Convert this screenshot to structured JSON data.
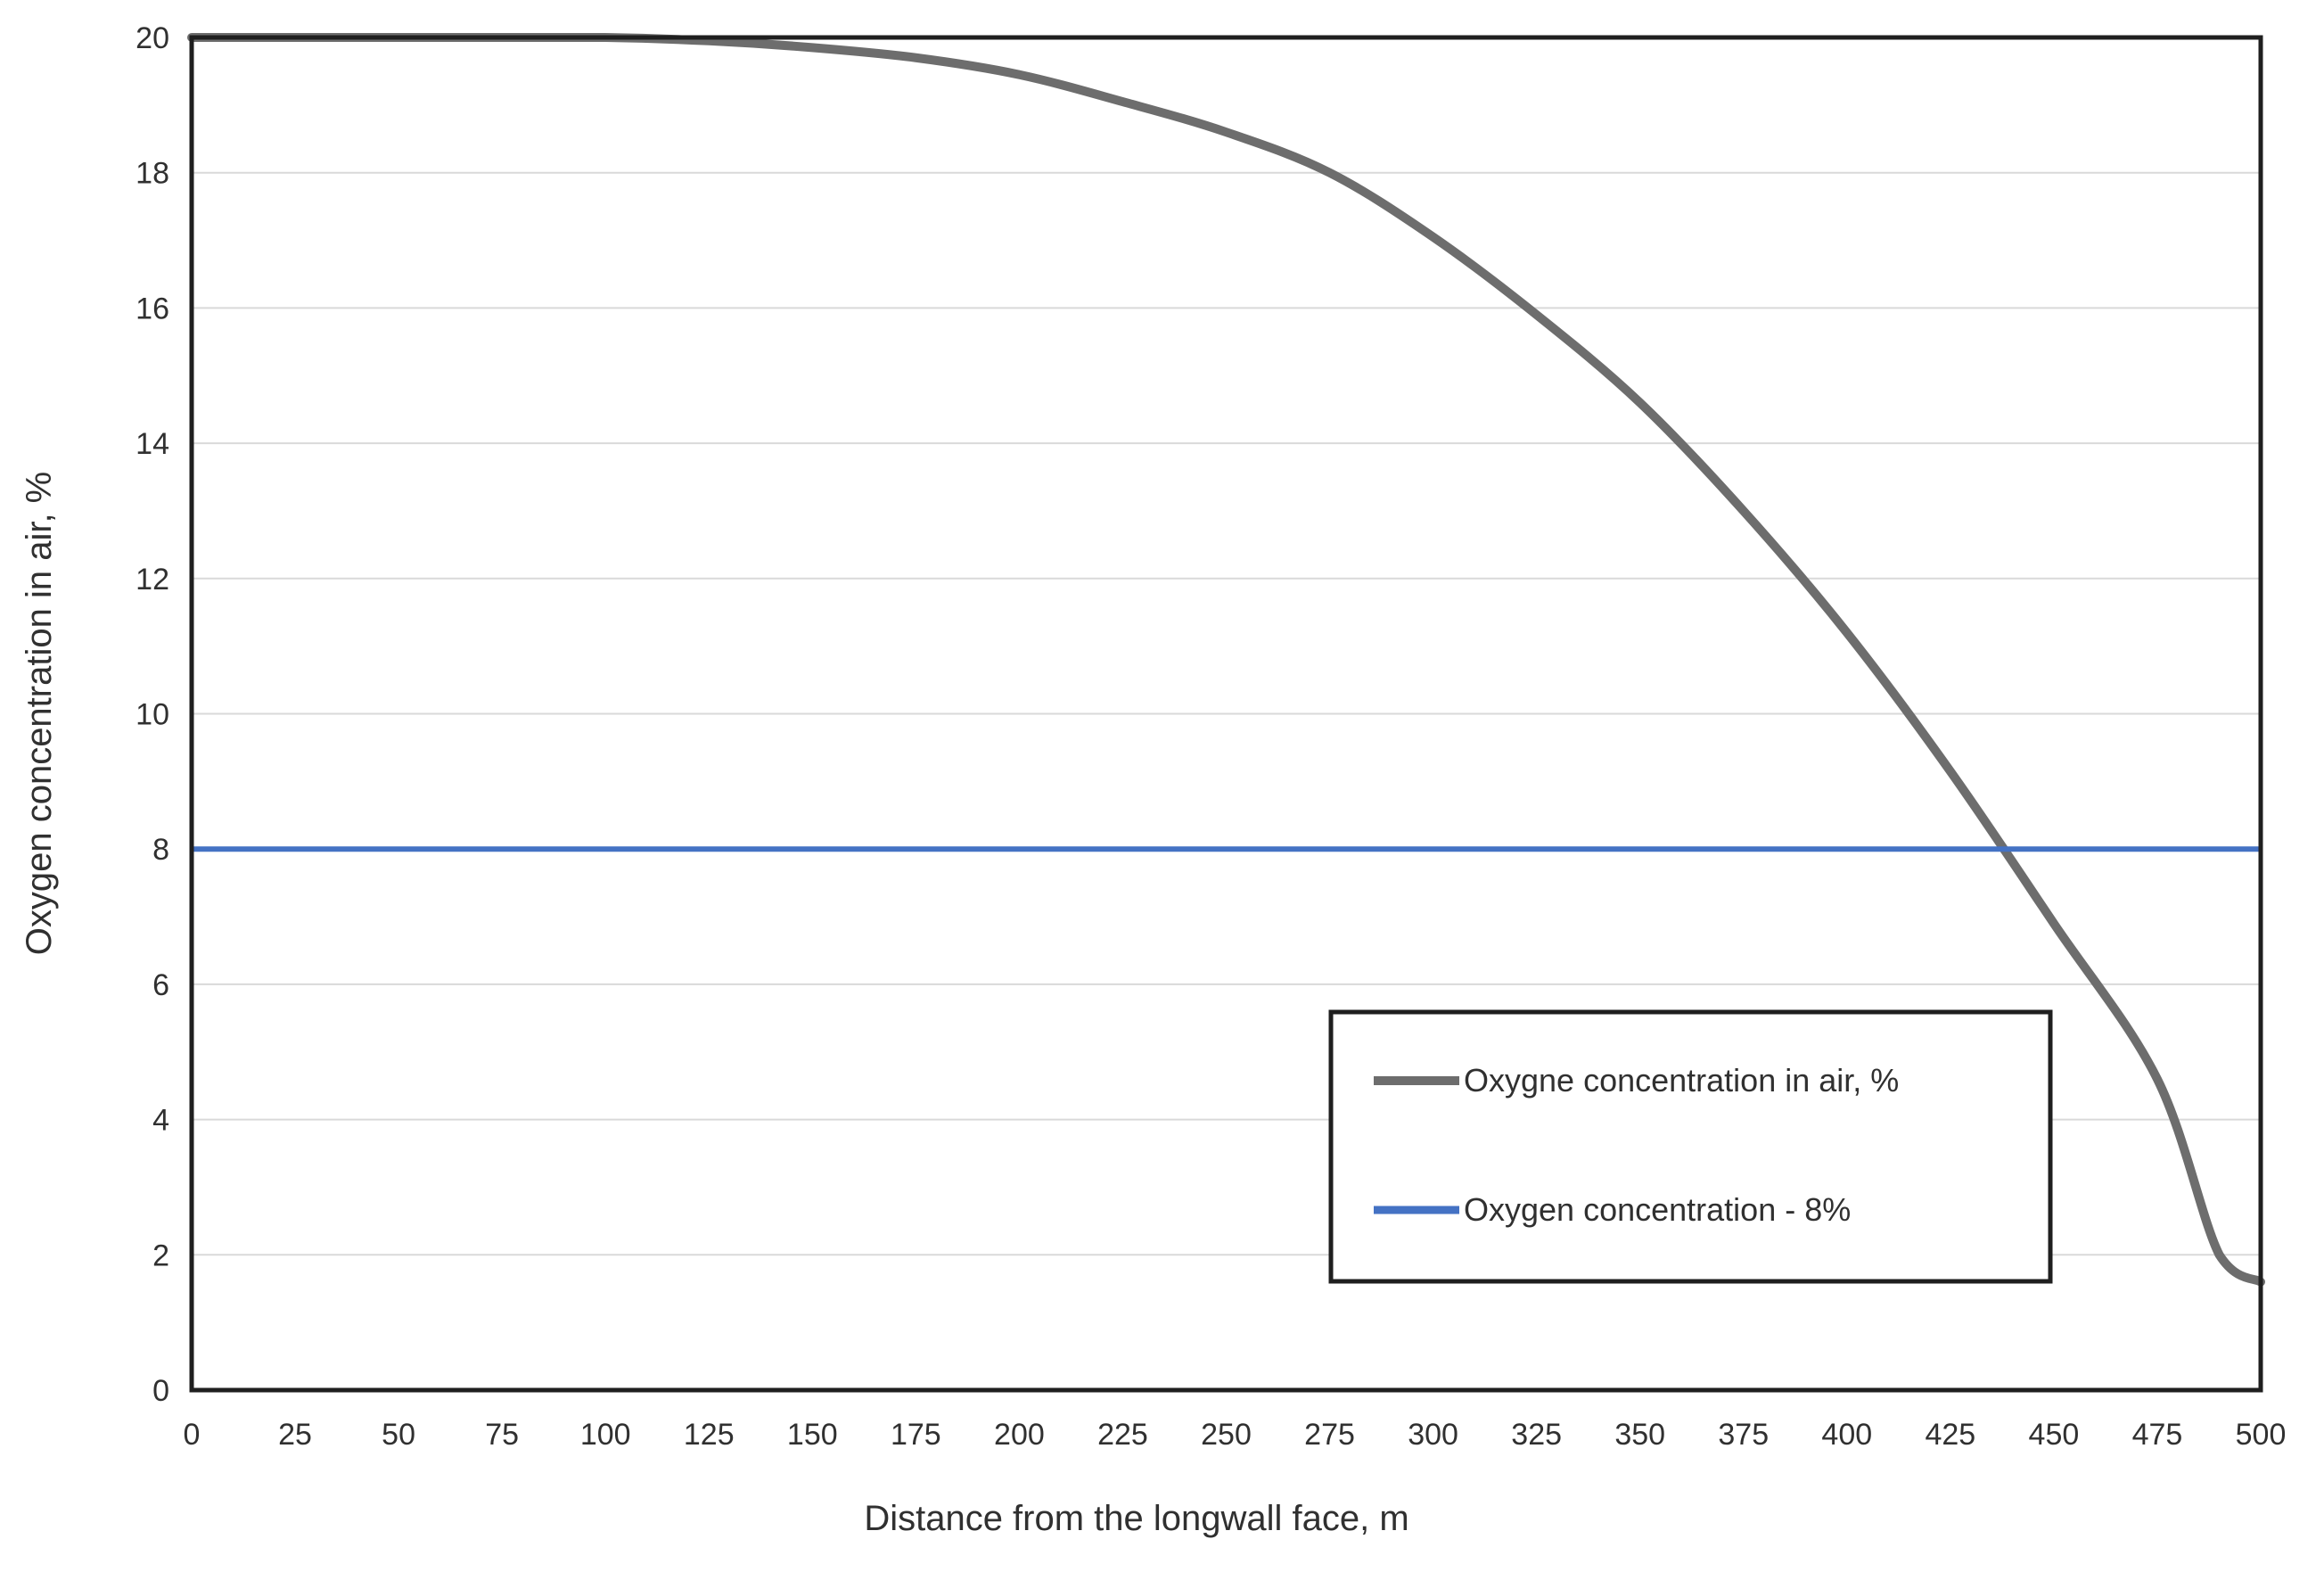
{
  "chart_data": {
    "type": "line",
    "title": "",
    "xlabel": "Distance from the longwall face, m",
    "ylabel": "Oxygen concentration in air, %",
    "xlim": [
      0,
      500
    ],
    "ylim": [
      0,
      20
    ],
    "xticks": [
      0,
      25,
      50,
      75,
      100,
      125,
      150,
      175,
      200,
      225,
      250,
      275,
      300,
      325,
      350,
      375,
      400,
      425,
      450,
      475,
      500
    ],
    "yticks": [
      0,
      2,
      4,
      6,
      8,
      10,
      12,
      14,
      16,
      18,
      20
    ],
    "grid": "horizontal-only",
    "legend_position": "inside-bottom-right",
    "series": [
      {
        "name": "Oxygne concentration in air, %",
        "type": "line",
        "color": "#6d6d6d",
        "stroke_width": 10,
        "x": [
          0,
          25,
          50,
          75,
          100,
          125,
          150,
          175,
          200,
          225,
          250,
          275,
          300,
          325,
          350,
          375,
          400,
          425,
          450,
          475,
          490,
          500
        ],
        "y": [
          20,
          20,
          20,
          20,
          20,
          19.95,
          19.85,
          19.7,
          19.45,
          19.05,
          18.6,
          18.0,
          17.05,
          15.9,
          14.6,
          13.0,
          11.2,
          9.15,
          6.9,
          4.6,
          2.0,
          1.6
        ]
      },
      {
        "name": "Oxygen concentration - 8%",
        "type": "hline",
        "color": "#4472c4",
        "stroke_width": 6,
        "value": 8
      }
    ],
    "styles": {
      "axis_color": "#1f1f1f",
      "gridline_color": "#d9d9d9",
      "text_color": "#303030",
      "background": "#ffffff",
      "legend_border_color": "#1f1f1f",
      "legend_fill": "#ffffff"
    }
  }
}
